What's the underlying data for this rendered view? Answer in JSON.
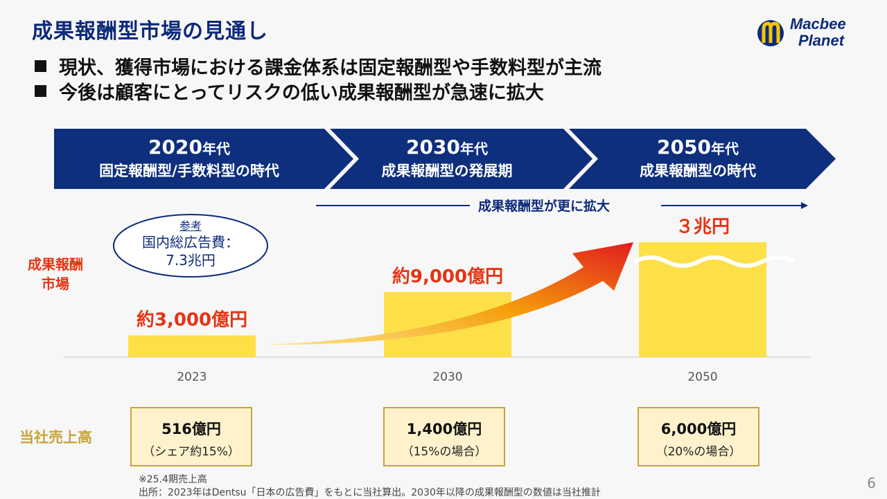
{
  "header": {
    "title": "成果報酬型市場の見通し",
    "logo_line1": "Macbee",
    "logo_line2": "Planet"
  },
  "bullets": [
    "現状、獲得市場における課金体系は固定報酬型や手数料型が主流",
    "今後は顧客にとってリスクの低い成果報酬型が急速に拡大"
  ],
  "timeline": [
    {
      "year": "2020",
      "suffix": "年代",
      "desc": "固定報酬型/手数料型の時代"
    },
    {
      "year": "2030",
      "suffix": "年代",
      "desc": "成果報酬型の発展期"
    },
    {
      "year": "2050",
      "suffix": "年代",
      "desc": "成果報酬型の時代"
    }
  ],
  "expansion_label": "成果報酬型が更に拡大",
  "reference": {
    "title": "参考",
    "line1": "国内総広告費：",
    "line2": "7.3兆円"
  },
  "market_label_line1": "成果報酬",
  "market_label_line2": "市場",
  "sales_label": "当社売上高",
  "chart_data": {
    "type": "bar",
    "categories": [
      "2023",
      "2030",
      "2050"
    ],
    "values": [
      3000,
      9000,
      30000
    ],
    "value_unit": "億円",
    "data_labels": [
      "約3,000億円",
      "約9,000億円",
      "３兆円"
    ],
    "axis_broken_last_bar": true,
    "bar_color": "#fde047",
    "label_color": "#e63312"
  },
  "sales": [
    {
      "main": "516億円",
      "sub": "（シェア約15%）"
    },
    {
      "main": "1,400億円",
      "sub": "（15%の場合）"
    },
    {
      "main": "6,000億円",
      "sub": "（20%の場合）"
    }
  ],
  "footnotes": [
    "※25.4期売上高",
    "出所：2023年はDentsu「日本の広告費」をもとに当社算出。2030年以降の成果報酬型の数値は当社推計"
  ],
  "page_number": "6",
  "colors": {
    "navy": "#0d2a7a",
    "accent_red": "#e63312",
    "gold": "#c9a33a"
  }
}
